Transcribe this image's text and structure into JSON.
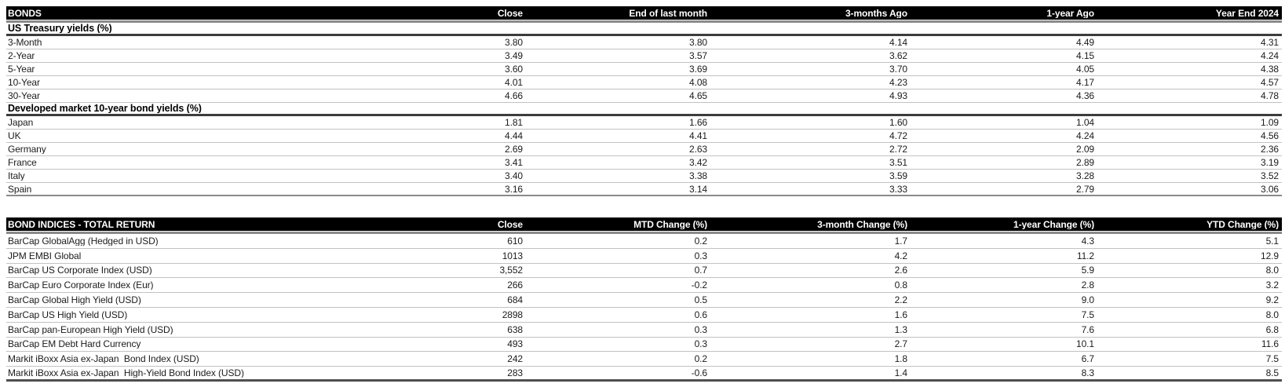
{
  "report": {
    "tables": [
      {
        "title": "BONDS",
        "columns": [
          "Close",
          "End of last month",
          "3-months Ago",
          "1-year Ago",
          "Year End 2024"
        ],
        "sections": [
          {
            "header": "US Treasury yields (%)",
            "rows": [
              {
                "label": "3-Month",
                "values": [
                  "3.80",
                  "3.80",
                  "4.14",
                  "4.49",
                  "4.31"
                ]
              },
              {
                "label": "2-Year",
                "values": [
                  "3.49",
                  "3.57",
                  "3.62",
                  "4.15",
                  "4.24"
                ]
              },
              {
                "label": "5-Year",
                "values": [
                  "3.60",
                  "3.69",
                  "3.70",
                  "4.05",
                  "4.38"
                ]
              },
              {
                "label": "10-Year",
                "values": [
                  "4.01",
                  "4.08",
                  "4.23",
                  "4.17",
                  "4.57"
                ]
              },
              {
                "label": "30-Year",
                "values": [
                  "4.66",
                  "4.65",
                  "4.93",
                  "4.36",
                  "4.78"
                ]
              }
            ]
          },
          {
            "header": "Developed market 10-year bond yields (%)",
            "rows": [
              {
                "label": "Japan",
                "values": [
                  "1.81",
                  "1.66",
                  "1.60",
                  "1.04",
                  "1.09"
                ]
              },
              {
                "label": "UK",
                "values": [
                  "4.44",
                  "4.41",
                  "4.72",
                  "4.24",
                  "4.56"
                ]
              },
              {
                "label": "Germany",
                "values": [
                  "2.69",
                  "2.63",
                  "2.72",
                  "2.09",
                  "2.36"
                ]
              },
              {
                "label": "France",
                "values": [
                  "3.41",
                  "3.42",
                  "3.51",
                  "2.89",
                  "3.19"
                ]
              },
              {
                "label": "Italy",
                "values": [
                  "3.40",
                  "3.38",
                  "3.59",
                  "3.28",
                  "3.52"
                ]
              },
              {
                "label": "Spain",
                "values": [
                  "3.16",
                  "3.14",
                  "3.33",
                  "2.79",
                  "3.06"
                ]
              }
            ]
          }
        ]
      },
      {
        "title": "BOND INDICES - TOTAL RETURN",
        "columns": [
          "Close",
          "MTD Change (%)",
          "3-month Change (%)",
          "1-year Change (%)",
          "YTD Change (%)"
        ],
        "sections": [
          {
            "header": null,
            "rows": [
              {
                "label": "BarCap GlobalAgg (Hedged in USD)",
                "values": [
                  "610",
                  "0.2",
                  "1.7",
                  "4.3",
                  "5.1"
                ]
              },
              {
                "label": "JPM EMBI Global",
                "values": [
                  "1013",
                  "0.3",
                  "4.2",
                  "11.2",
                  "12.9"
                ]
              },
              {
                "label": "BarCap US Corporate Index (USD)",
                "values": [
                  "3,552",
                  "0.7",
                  "2.6",
                  "5.9",
                  "8.0"
                ]
              },
              {
                "label": "BarCap Euro Corporate Index (Eur)",
                "values": [
                  "266",
                  "-0.2",
                  "0.8",
                  "2.8",
                  "3.2"
                ]
              },
              {
                "label": "BarCap Global High Yield (USD)",
                "values": [
                  "684",
                  "0.5",
                  "2.2",
                  "9.0",
                  "9.2"
                ]
              },
              {
                "label": "BarCap US High Yield (USD)",
                "values": [
                  "2898",
                  "0.6",
                  "1.6",
                  "7.5",
                  "8.0"
                ]
              },
              {
                "label": "BarCap pan-European High Yield (USD)",
                "values": [
                  "638",
                  "0.3",
                  "1.3",
                  "7.6",
                  "6.8"
                ]
              },
              {
                "label": "BarCap EM Debt Hard Currency",
                "values": [
                  "493",
                  "0.3",
                  "2.7",
                  "10.1",
                  "11.6"
                ]
              },
              {
                "label": "Markit iBoxx Asia ex-Japan  Bond Index (USD)",
                "values": [
                  "242",
                  "0.2",
                  "1.8",
                  "6.7",
                  "7.5"
                ]
              },
              {
                "label": "Markit iBoxx Asia ex-Japan  High-Yield Bond Index (USD)",
                "values": [
                  "283",
                  "-0.6",
                  "1.4",
                  "8.3",
                  "8.5"
                ]
              }
            ]
          }
        ]
      }
    ]
  },
  "colors": {
    "header_bg": "#000000",
    "header_text": "#ffffff",
    "section_rule": "#3c3c3c",
    "row_rule": "#c2c2c2",
    "table_bottom_rule": "#4f4f4f"
  }
}
